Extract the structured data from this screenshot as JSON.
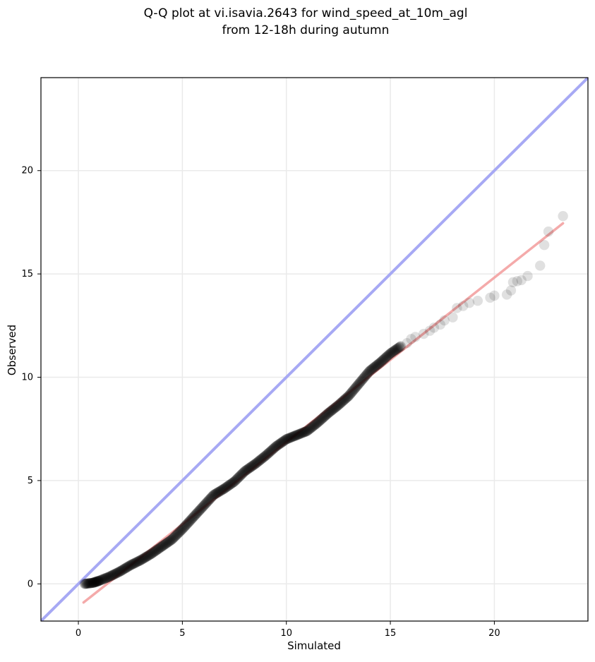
{
  "chart_data": {
    "type": "scatter",
    "title_lines": [
      "Q-Q plot at vi.isavia.2643 for wind_speed_at_10m_agl",
      "from 12-18h during autumn"
    ],
    "xlabel": "Simulated",
    "ylabel": "Observed",
    "xlim": [
      -1.8,
      24.5
    ],
    "ylim": [
      -1.8,
      24.5
    ],
    "x_ticks": [
      0,
      5,
      10,
      15,
      20
    ],
    "y_ticks": [
      0,
      5,
      10,
      15,
      20
    ],
    "x_tick_labels": [
      "0",
      "5",
      "10",
      "15",
      "20"
    ],
    "y_tick_labels": [
      "0",
      "5",
      "10",
      "15",
      "20"
    ],
    "grid": true,
    "colors": {
      "points": "#000000",
      "identity_line": "#a7a9f4",
      "fit_line": "#f4a6a6",
      "grid": "#eaeaea",
      "axes": "#000000"
    },
    "lines": [
      {
        "type": "identity",
        "x": [
          -1.8,
          24.5
        ],
        "y": [
          -1.8,
          24.5
        ]
      },
      {
        "type": "fit",
        "x": [
          0.25,
          23.3
        ],
        "y": [
          -0.9,
          17.45
        ]
      }
    ],
    "quantile_path": [
      {
        "x": 0.3,
        "y": 0.0
      },
      {
        "x": 0.7,
        "y": 0.05
      },
      {
        "x": 1.0,
        "y": 0.15
      },
      {
        "x": 1.5,
        "y": 0.35
      },
      {
        "x": 2.0,
        "y": 0.6
      },
      {
        "x": 2.5,
        "y": 0.9
      },
      {
        "x": 3.0,
        "y": 1.15
      },
      {
        "x": 3.5,
        "y": 1.45
      },
      {
        "x": 4.0,
        "y": 1.8
      },
      {
        "x": 4.5,
        "y": 2.15
      },
      {
        "x": 5.0,
        "y": 2.65
      },
      {
        "x": 5.5,
        "y": 3.2
      },
      {
        "x": 6.0,
        "y": 3.75
      },
      {
        "x": 6.5,
        "y": 4.3
      },
      {
        "x": 7.0,
        "y": 4.6
      },
      {
        "x": 7.5,
        "y": 4.95
      },
      {
        "x": 8.0,
        "y": 5.45
      },
      {
        "x": 8.5,
        "y": 5.8
      },
      {
        "x": 9.0,
        "y": 6.2
      },
      {
        "x": 9.5,
        "y": 6.65
      },
      {
        "x": 10.0,
        "y": 7.0
      },
      {
        "x": 10.5,
        "y": 7.2
      },
      {
        "x": 11.0,
        "y": 7.4
      },
      {
        "x": 11.5,
        "y": 7.8
      },
      {
        "x": 12.0,
        "y": 8.25
      },
      {
        "x": 12.5,
        "y": 8.65
      },
      {
        "x": 13.0,
        "y": 9.1
      },
      {
        "x": 13.5,
        "y": 9.7
      },
      {
        "x": 14.0,
        "y": 10.3
      },
      {
        "x": 14.5,
        "y": 10.7
      },
      {
        "x": 15.0,
        "y": 11.15
      },
      {
        "x": 15.5,
        "y": 11.5
      }
    ],
    "tail_points": [
      {
        "x": 15.8,
        "y": 11.65
      },
      {
        "x": 16.0,
        "y": 11.85
      },
      {
        "x": 16.2,
        "y": 11.95
      },
      {
        "x": 16.6,
        "y": 12.1
      },
      {
        "x": 16.9,
        "y": 12.25
      },
      {
        "x": 17.1,
        "y": 12.4
      },
      {
        "x": 17.4,
        "y": 12.55
      },
      {
        "x": 17.6,
        "y": 12.75
      },
      {
        "x": 18.0,
        "y": 12.9
      },
      {
        "x": 18.2,
        "y": 13.35
      },
      {
        "x": 18.5,
        "y": 13.45
      },
      {
        "x": 18.8,
        "y": 13.6
      },
      {
        "x": 19.2,
        "y": 13.7
      },
      {
        "x": 19.8,
        "y": 13.85
      },
      {
        "x": 20.0,
        "y": 13.95
      },
      {
        "x": 20.6,
        "y": 14.0
      },
      {
        "x": 20.8,
        "y": 14.2
      },
      {
        "x": 20.9,
        "y": 14.6
      },
      {
        "x": 21.1,
        "y": 14.65
      },
      {
        "x": 21.3,
        "y": 14.7
      },
      {
        "x": 21.6,
        "y": 14.9
      },
      {
        "x": 22.2,
        "y": 15.4
      },
      {
        "x": 22.4,
        "y": 16.4
      },
      {
        "x": 22.6,
        "y": 17.05
      },
      {
        "x": 23.3,
        "y": 17.8
      }
    ]
  }
}
